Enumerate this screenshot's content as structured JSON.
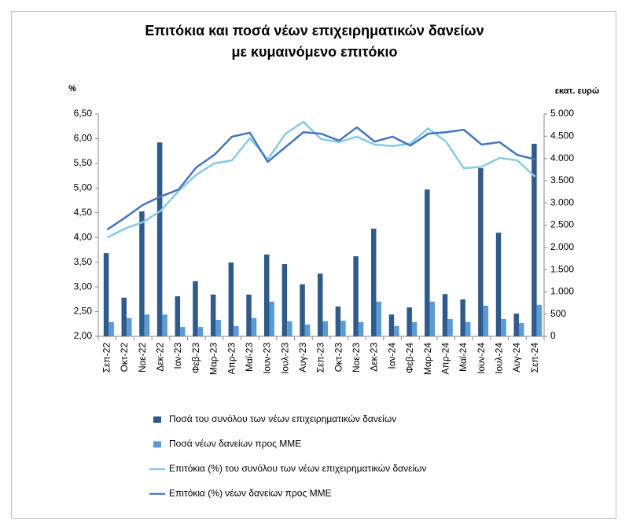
{
  "chart_data": {
    "type": "combo",
    "title": "Επιτόκια και ποσά νέων επιχειρηματικών δανείων με κυμαινόμενο επιτόκιο",
    "y_label": "%",
    "y2_label": "εκατ. ευρώ",
    "categories": [
      "Σεπ-22",
      "Οκτ-22",
      "Νοε-22",
      "Δεκ-22",
      "Ιαν-23",
      "Φεβ-23",
      "Μαρ-23",
      "Απρ-23",
      "Μαϊ-23",
      "Ιουν-23",
      "Ιουλ-23",
      "Αυγ-23",
      "Σεπ-23",
      "Οκτ-23",
      "Νοε-23",
      "Δεκ-23",
      "Ιαν-24",
      "Φεβ-24",
      "Μαρ-24",
      "Απρ-24",
      "Μαϊ-24",
      "Ιουν-24",
      "Ιουλ-24",
      "Αυγ-24",
      "Σεπ-24"
    ],
    "ylim": [
      2,
      6.5
    ],
    "yticks": [
      {
        "value": 2,
        "label": "2,00"
      },
      {
        "value": 2.5,
        "label": "2,50"
      },
      {
        "value": 3,
        "label": "3,00"
      },
      {
        "value": 3.5,
        "label": "3,50"
      },
      {
        "value": 4,
        "label": "4,00"
      },
      {
        "value": 4.5,
        "label": "4,50"
      },
      {
        "value": 5,
        "label": "5,00"
      },
      {
        "value": 5.5,
        "label": "5,50"
      },
      {
        "value": 6,
        "label": "6,00"
      },
      {
        "value": 6.5,
        "label": "6,50"
      }
    ],
    "y2lim": [
      0,
      5000
    ],
    "y2ticks": [
      0,
      500,
      {
        "value": 1000,
        "label": "1.000"
      },
      {
        "value": 1500,
        "label": "1.500"
      },
      {
        "value": 2000,
        "label": "2.000"
      },
      {
        "value": 2500,
        "label": "2.500"
      },
      {
        "value": 3000,
        "label": "3.000"
      },
      {
        "value": 3500,
        "label": "3.500"
      },
      {
        "value": 4000,
        "label": "4.000"
      },
      {
        "value": 4500,
        "label": "4.500"
      },
      {
        "value": 5000,
        "label": "5.000"
      }
    ],
    "series": [
      {
        "name": "Ποσά του συνόλου των νέων επιχειρηματικών δανείων",
        "type": "bar",
        "axis": "y2",
        "color": "#2f5a8c",
        "values": [
          1870,
          870,
          2810,
          4360,
          900,
          1240,
          940,
          1660,
          940,
          1840,
          1625,
          1170,
          1410,
          670,
          1800,
          2420,
          490,
          650,
          3300,
          950,
          830,
          3780,
          2330,
          510,
          4330
        ]
      },
      {
        "name": "Ποσά νέων δανείων προς ΜΜΕ",
        "type": "bar",
        "axis": "y2",
        "color": "#5b9bd5",
        "values": [
          320,
          410,
          490,
          490,
          210,
          210,
          370,
          230,
          410,
          780,
          340,
          265,
          340,
          350,
          320,
          780,
          230,
          320,
          780,
          390,
          320,
          690,
          390,
          300,
          710
        ]
      },
      {
        "name": "Επιτόκια (%) του συνόλου των νέων επιχειρηματικών δανείων",
        "type": "line",
        "color": "#86cbe6",
        "values": [
          4.0,
          4.18,
          4.31,
          4.54,
          4.94,
          5.27,
          5.5,
          5.56,
          6.01,
          5.58,
          6.1,
          6.34,
          5.99,
          5.93,
          6.04,
          5.88,
          5.85,
          5.9,
          6.21,
          5.94,
          5.4,
          5.43,
          5.61,
          5.56,
          5.23
        ]
      },
      {
        "name": "Επιτόκια (%) νέων δανείων προς ΜΜΕ",
        "type": "line",
        "color": "#4676bd",
        "values": [
          4.16,
          4.4,
          4.66,
          4.83,
          4.97,
          5.42,
          5.67,
          6.04,
          6.12,
          5.53,
          5.83,
          6.13,
          6.1,
          5.96,
          6.23,
          5.94,
          6.04,
          5.86,
          6.1,
          6.13,
          6.18,
          5.88,
          5.93,
          5.67,
          5.58
        ]
      }
    ]
  }
}
